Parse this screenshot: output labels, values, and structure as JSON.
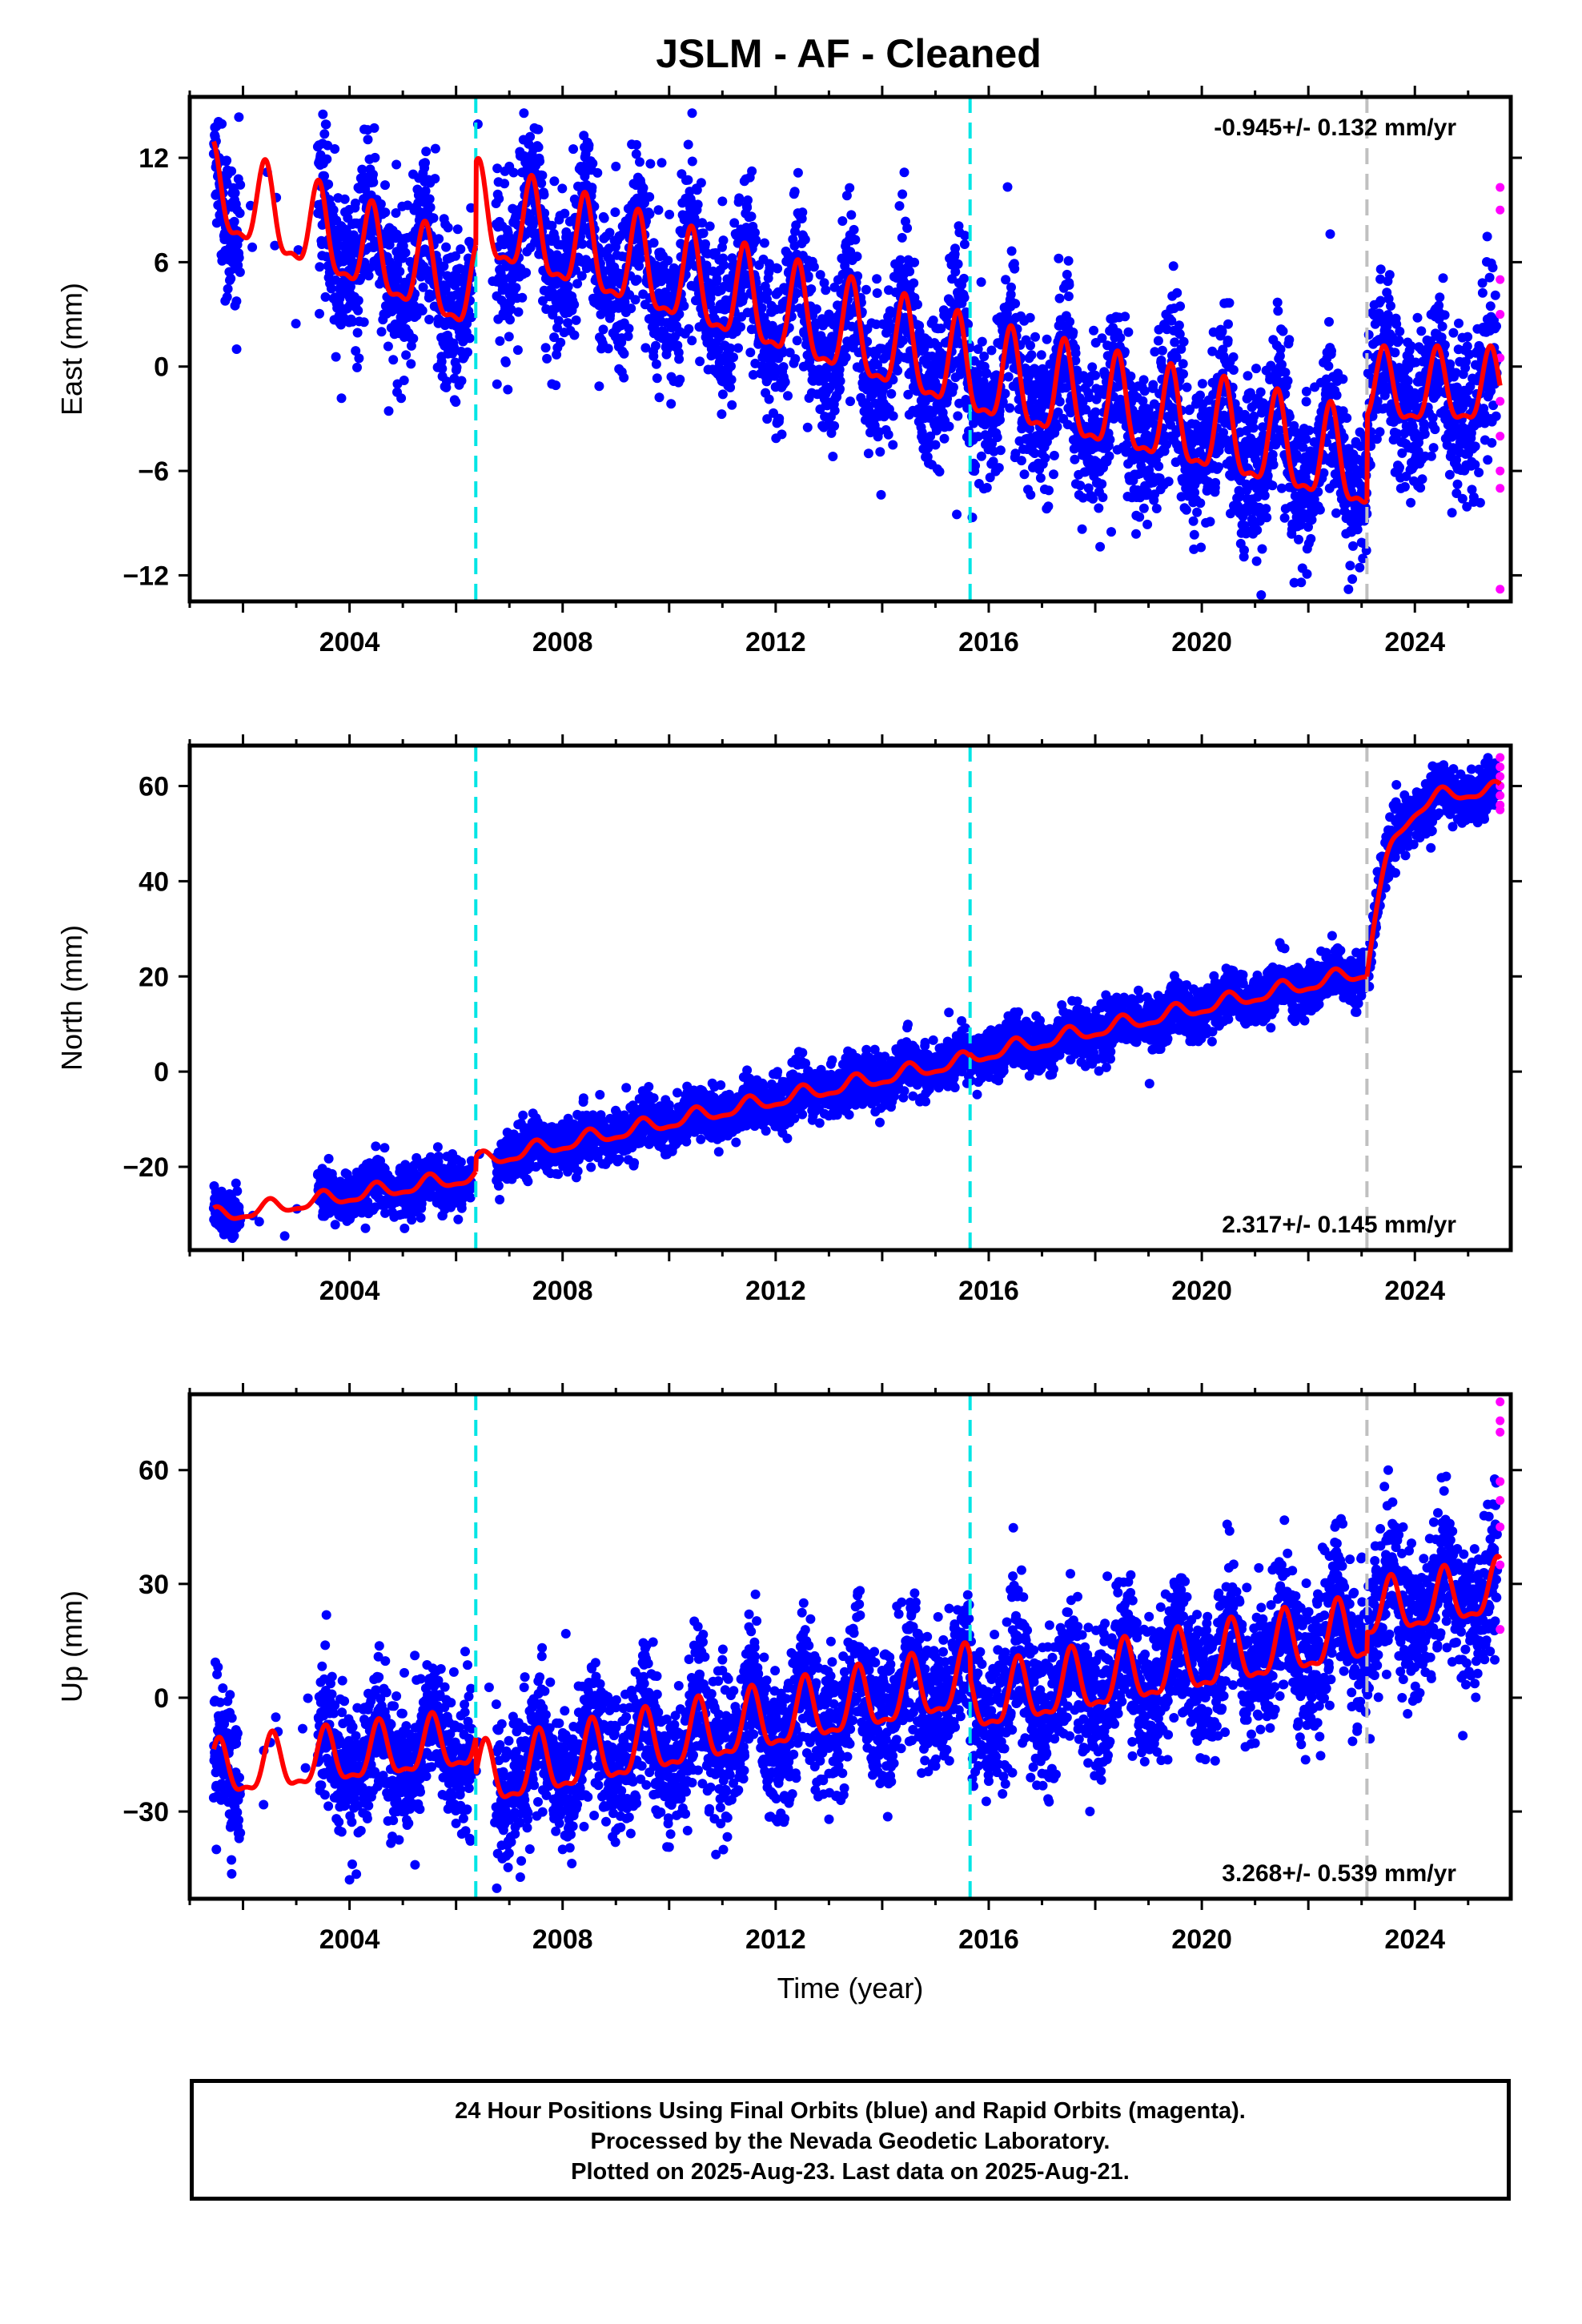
{
  "title": "JSLM  - AF - Cleaned",
  "colors": {
    "final_orbits": "#0000ff",
    "rapid_orbits": "#ff00ff",
    "model_fit": "#ff0000",
    "equipment_change": "#00e5e5",
    "earthquake": "#c0c0c0"
  },
  "chart_data": [
    {
      "type": "scatter",
      "ylabel": "East (mm)",
      "xlabel": "",
      "x_ticks": [
        2004,
        2008,
        2012,
        2016,
        2020,
        2024
      ],
      "xlim": [
        2001.0,
        2025.8
      ],
      "ylim": [
        -13.5,
        15.5
      ],
      "y_ticks": [
        12,
        6,
        0,
        -6,
        -12
      ],
      "y_tick_labels": [
        "12",
        "6",
        "0",
        "−6",
        "−12"
      ],
      "rate": "-0.945+/- 0.132 mm/yr",
      "rate_position": "top-right",
      "vlines": [
        {
          "x": 2006.37,
          "kind": "equipment_change"
        },
        {
          "x": 2015.65,
          "kind": "equipment_change"
        },
        {
          "x": 2023.1,
          "kind": "earthquake"
        }
      ],
      "model": {
        "segments": [
          {
            "x0": 2001.45,
            "x1": 2006.37,
            "start": 9.8,
            "end": 4.0,
            "amplitude": 2.4
          },
          {
            "x0": 2006.37,
            "x1": 2015.65,
            "start": 8.5,
            "end": -0.5,
            "amplitude": 2.6
          },
          {
            "x0": 2015.65,
            "x1": 2023.1,
            "start": -0.6,
            "end": -6.0,
            "amplitude": 2.6
          },
          {
            "x0": 2023.1,
            "x1": 2025.6,
            "start": -1.5,
            "end": -1.5,
            "amplitude": 2.0
          }
        ],
        "phase_peak": 0.42
      },
      "final_points": [
        [
          2001.5,
          13.8
        ],
        [
          2001.55,
          12.0
        ],
        [
          2001.62,
          9.5
        ],
        [
          2001.7,
          10.5
        ],
        [
          2001.8,
          6.0
        ],
        [
          2001.85,
          3.5
        ],
        [
          2001.88,
          1.0
        ],
        [
          2003.5,
          14.5
        ],
        [
          2003.7,
          9.0
        ],
        [
          2004.0,
          4.0
        ],
        [
          2004.3,
          8.5
        ],
        [
          2004.6,
          2.0
        ],
        [
          2004.9,
          -1.0
        ],
        [
          2005.2,
          7.5
        ],
        [
          2005.5,
          5.0
        ],
        [
          2005.8,
          2.5
        ],
        [
          2006.1,
          3.0
        ],
        [
          2007.0,
          11.5
        ],
        [
          2007.4,
          8.5
        ],
        [
          2007.8,
          -1.0
        ],
        [
          2008.2,
          12.5
        ],
        [
          2008.6,
          6.0
        ],
        [
          2009.0,
          11.5
        ],
        [
          2009.4,
          5.0
        ],
        [
          2009.8,
          9.0
        ],
        [
          2010.2,
          2.0
        ],
        [
          2010.6,
          5.5
        ],
        [
          2011.0,
          9.5
        ],
        [
          2011.4,
          4.0
        ],
        [
          2011.8,
          0.5
        ],
        [
          2012.2,
          4.5
        ],
        [
          2012.6,
          -3.5
        ],
        [
          2013.0,
          3.0
        ],
        [
          2013.4,
          -2.0
        ],
        [
          2013.8,
          2.5
        ],
        [
          2014.2,
          -4.5
        ],
        [
          2014.6,
          0.0
        ],
        [
          2015.0,
          -4.5
        ],
        [
          2015.4,
          -8.5
        ],
        [
          2015.8,
          1.0
        ],
        [
          2016.2,
          -3.0
        ],
        [
          2016.6,
          0.5
        ],
        [
          2017.0,
          -5.0
        ],
        [
          2017.4,
          -3.0
        ],
        [
          2017.9,
          -7.5
        ],
        [
          2018.3,
          -9.5
        ],
        [
          2018.8,
          -3.0
        ],
        [
          2019.2,
          -5.0
        ],
        [
          2019.7,
          -7.0
        ],
        [
          2020.1,
          -3.0
        ],
        [
          2020.6,
          -8.0
        ],
        [
          2021.0,
          -4.5
        ],
        [
          2021.5,
          -7.0
        ],
        [
          2021.9,
          -6.5
        ],
        [
          2022.4,
          -7.0
        ],
        [
          2022.8,
          -9.5
        ],
        [
          2023.3,
          -2.0
        ],
        [
          2023.7,
          1.5
        ],
        [
          2024.1,
          -4.0
        ],
        [
          2024.5,
          3.0
        ],
        [
          2024.9,
          -3.5
        ],
        [
          2025.3,
          2.0
        ],
        [
          2025.5,
          -1.0
        ]
      ],
      "rapid_points": [
        [
          2025.6,
          10.3
        ],
        [
          2025.6,
          9.0
        ],
        [
          2025.6,
          5.0
        ],
        [
          2025.6,
          3.0
        ],
        [
          2025.6,
          0.5
        ],
        [
          2025.6,
          -2.0
        ],
        [
          2025.6,
          -4.0
        ],
        [
          2025.6,
          -6.0
        ],
        [
          2025.6,
          -7.0
        ],
        [
          2025.6,
          -12.8
        ]
      ]
    },
    {
      "type": "scatter",
      "ylabel": "North (mm)",
      "xlabel": "",
      "x_ticks": [
        2004,
        2008,
        2012,
        2016,
        2020,
        2024
      ],
      "xlim": [
        2001.0,
        2025.8
      ],
      "ylim": [
        -37.5,
        68.5
      ],
      "y_ticks": [
        60,
        40,
        20,
        0,
        -20
      ],
      "y_tick_labels": [
        "60",
        "40",
        "20",
        "0",
        "−20"
      ],
      "rate": "2.317+/- 0.145 mm/yr",
      "rate_position": "bottom-right",
      "vlines": [
        {
          "x": 2006.37,
          "kind": "equipment_change"
        },
        {
          "x": 2015.65,
          "kind": "equipment_change"
        },
        {
          "x": 2023.1,
          "kind": "earthquake"
        }
      ],
      "model": {
        "segments": [
          {
            "x0": 2001.45,
            "x1": 2006.37,
            "start": -30.5,
            "end": -22.0,
            "amplitude": 1.5
          },
          {
            "x0": 2006.37,
            "x1": 2015.65,
            "start": -19.0,
            "end": 2.5,
            "amplitude": 1.5
          },
          {
            "x0": 2015.65,
            "x1": 2023.1,
            "start": 3.0,
            "end": 21.0,
            "amplitude": 1.5
          },
          {
            "x0": 2023.1,
            "x1": 2025.6,
            "start": 21.0,
            "end": 59.0,
            "amplitude": 1.5,
            "postseismic": true
          }
        ],
        "phase_peak": 0.5
      },
      "final_points": [
        [
          2001.5,
          -29.0
        ],
        [
          2001.6,
          -33.0
        ],
        [
          2001.8,
          -35.0
        ],
        [
          2003.5,
          -25.0
        ],
        [
          2003.8,
          -30.0
        ],
        [
          2004.2,
          -22.0
        ],
        [
          2004.6,
          -28.0
        ],
        [
          2005.0,
          -24.0
        ],
        [
          2005.5,
          -26.0
        ],
        [
          2005.9,
          -20.0
        ],
        [
          2006.2,
          -24.0
        ],
        [
          2007.0,
          -16.0
        ],
        [
          2007.5,
          -20.0
        ],
        [
          2008.0,
          -13.0
        ],
        [
          2008.5,
          -18.0
        ],
        [
          2009.0,
          -11.0
        ],
        [
          2009.5,
          -13.0
        ],
        [
          2010.0,
          -7.0
        ],
        [
          2010.5,
          -12.0
        ],
        [
          2011.0,
          -6.0
        ],
        [
          2011.5,
          -11.0
        ],
        [
          2012.0,
          -4.0
        ],
        [
          2012.5,
          -9.0
        ],
        [
          2013.0,
          -3.0
        ],
        [
          2013.5,
          -7.0
        ],
        [
          2014.0,
          2.0
        ],
        [
          2014.5,
          -2.0
        ],
        [
          2015.0,
          3.0
        ],
        [
          2015.5,
          0.0
        ],
        [
          2016.0,
          6.0
        ],
        [
          2016.5,
          3.0
        ],
        [
          2017.0,
          9.0
        ],
        [
          2017.5,
          5.0
        ],
        [
          2018.0,
          11.0
        ],
        [
          2018.5,
          7.0
        ],
        [
          2019.0,
          12.0
        ],
        [
          2019.5,
          9.0
        ],
        [
          2020.0,
          16.0
        ],
        [
          2020.5,
          11.0
        ],
        [
          2021.0,
          19.0
        ],
        [
          2021.5,
          15.0
        ],
        [
          2022.0,
          21.0
        ],
        [
          2022.5,
          17.0
        ],
        [
          2022.9,
          25.0
        ],
        [
          2023.2,
          30.0
        ],
        [
          2023.4,
          40.0
        ],
        [
          2023.7,
          48.0
        ],
        [
          2024.0,
          52.0
        ],
        [
          2024.3,
          47.0
        ],
        [
          2024.6,
          58.0
        ],
        [
          2024.9,
          55.0
        ],
        [
          2025.2,
          60.0
        ],
        [
          2025.5,
          56.0
        ]
      ],
      "rapid_points": [
        [
          2025.6,
          66.0
        ],
        [
          2025.6,
          64.0
        ],
        [
          2025.6,
          62.0
        ],
        [
          2025.6,
          60.0
        ],
        [
          2025.6,
          58.0
        ],
        [
          2025.6,
          56.0
        ],
        [
          2025.6,
          55.0
        ]
      ]
    },
    {
      "type": "scatter",
      "ylabel": "Up (mm)",
      "xlabel": "Time (year)",
      "x_ticks": [
        2004,
        2008,
        2012,
        2016,
        2020,
        2024
      ],
      "xlim": [
        2001.0,
        2025.8
      ],
      "ylim": [
        -53.0,
        80.0
      ],
      "y_ticks": [
        60,
        30,
        0,
        -30
      ],
      "y_tick_labels": [
        "60",
        "30",
        "0",
        "−30"
      ],
      "rate": "3.268+/- 0.539 mm/yr",
      "rate_position": "bottom-right",
      "vlines": [
        {
          "x": 2006.37,
          "kind": "equipment_change"
        },
        {
          "x": 2015.65,
          "kind": "equipment_change"
        },
        {
          "x": 2023.1,
          "kind": "earthquake"
        }
      ],
      "model": {
        "segments": [
          {
            "x0": 2001.45,
            "x1": 2006.37,
            "start": -20.0,
            "end": -12.0,
            "amplitude": 7.0
          },
          {
            "x0": 2006.37,
            "x1": 2015.65,
            "start": -22.0,
            "end": 4.0,
            "amplitude": 8.0
          },
          {
            "x0": 2015.65,
            "x1": 2023.1,
            "start": -2.0,
            "end": 17.0,
            "amplitude": 8.0
          },
          {
            "x0": 2023.1,
            "x1": 2025.6,
            "start": 22.0,
            "end": 28.0,
            "amplitude": 7.0
          }
        ],
        "phase_peak": 0.55
      },
      "final_points": [
        [
          2001.5,
          -40.0
        ],
        [
          2001.6,
          -15.0
        ],
        [
          2001.8,
          -25.0
        ],
        [
          2003.5,
          -10.0
        ],
        [
          2003.8,
          -35.0
        ],
        [
          2004.0,
          -48.0
        ],
        [
          2004.5,
          2.0
        ],
        [
          2004.9,
          -30.0
        ],
        [
          2005.5,
          5.0
        ],
        [
          2005.9,
          -25.0
        ],
        [
          2007.0,
          -38.0
        ],
        [
          2007.6,
          -15.0
        ],
        [
          2008.0,
          -40.0
        ],
        [
          2008.6,
          -5.0
        ],
        [
          2009.0,
          -35.0
        ],
        [
          2009.6,
          0.0
        ],
        [
          2010.0,
          -25.0
        ],
        [
          2010.5,
          -8.0
        ],
        [
          2011.0,
          10.0
        ],
        [
          2011.5,
          22.0
        ],
        [
          2011.9,
          -25.0
        ],
        [
          2012.5,
          12.0
        ],
        [
          2013.0,
          -20.0
        ],
        [
          2013.5,
          24.0
        ],
        [
          2014.0,
          -12.0
        ],
        [
          2014.5,
          18.0
        ],
        [
          2015.0,
          -18.0
        ],
        [
          2015.5,
          10.0
        ],
        [
          2016.0,
          -22.0
        ],
        [
          2016.5,
          15.0
        ],
        [
          2017.0,
          -20.0
        ],
        [
          2017.5,
          12.0
        ],
        [
          2017.9,
          -30.0
        ],
        [
          2018.5,
          18.0
        ],
        [
          2019.0,
          -12.0
        ],
        [
          2019.5,
          20.0
        ],
        [
          2020.0,
          -10.0
        ],
        [
          2020.5,
          22.0
        ],
        [
          2021.0,
          -12.0
        ],
        [
          2021.5,
          35.0
        ],
        [
          2022.0,
          -5.0
        ],
        [
          2022.5,
          45.0
        ],
        [
          2023.0,
          5.0
        ],
        [
          2023.5,
          60.0
        ],
        [
          2024.0,
          8.0
        ],
        [
          2024.5,
          58.0
        ],
        [
          2024.9,
          -10.0
        ],
        [
          2025.3,
          48.0
        ],
        [
          2025.5,
          10.0
        ]
      ],
      "rapid_points": [
        [
          2025.6,
          78.0
        ],
        [
          2025.6,
          73.0
        ],
        [
          2025.6,
          70.0
        ],
        [
          2025.6,
          57.0
        ],
        [
          2025.6,
          52.0
        ],
        [
          2025.6,
          45.0
        ],
        [
          2025.6,
          35.0
        ],
        [
          2025.6,
          18.0
        ]
      ]
    }
  ],
  "footer": {
    "line1": "24 Hour Positions Using Final Orbits (blue) and Rapid Orbits (magenta).",
    "line2": "Processed by the Nevada Geodetic Laboratory.",
    "line3": "Plotted on 2025-Aug-23. Last data on 2025-Aug-21."
  }
}
